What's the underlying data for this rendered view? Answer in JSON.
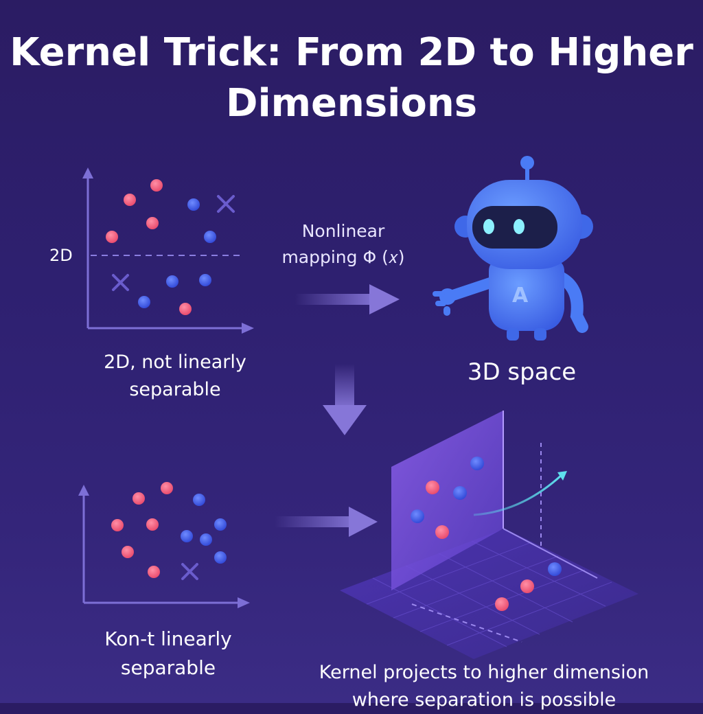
{
  "title": "Kernel Trick: From 2D to Higher Dimensions",
  "labels": {
    "dim_2d": "2D",
    "mapping_line1": "Nonlinear",
    "mapping_line2": "mapping Φ (𝑥)",
    "caption_top_line1": "2D, not linearly",
    "caption_top_line2": "separable",
    "space_3d": "3D space",
    "robot_badge": "A",
    "caption_bottom_line1": "Kon-t linearly",
    "caption_bottom_line2": "separable",
    "caption_kernel_line1": "Kernel projects to higher dimension",
    "caption_kernel_line2": "where separation is possible"
  },
  "colors": {
    "class_red": "#f25a78",
    "class_blue": "#3d5cf0",
    "axis": "#7d6fd6",
    "arrow": "#8676d8",
    "robot": "#4a7bf5",
    "plane": "#7a55e0",
    "curve": "#5fe0ee"
  }
}
